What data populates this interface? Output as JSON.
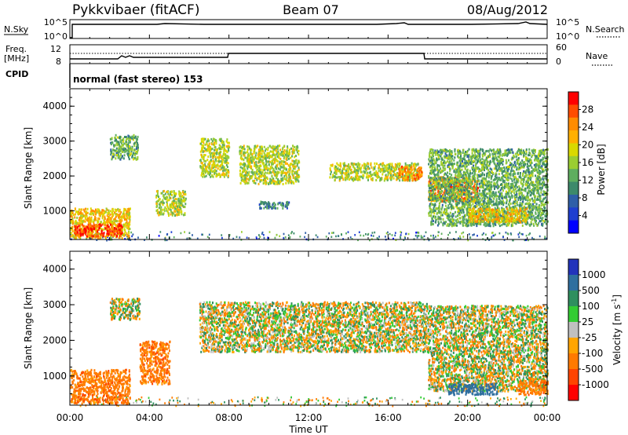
{
  "header": {
    "radar": "Pykkvibaer (fitACF)",
    "beam": "Beam 07",
    "date": "08/Aug/2012"
  },
  "panels": {
    "nsky": {
      "label": "N.Sky",
      "ticks": [
        "10^5",
        "10^0"
      ],
      "right_label": "N.Search",
      "right_ticks": [
        "10^5",
        "10^0"
      ]
    },
    "freq": {
      "label_line1": "Freq.",
      "label_line2": "[MHz]",
      "ticks": [
        "12",
        "8"
      ],
      "right_label": "Nave",
      "right_ticks": [
        "60",
        "0"
      ]
    },
    "cpid": {
      "label": "CPID",
      "program": "normal (fast stereo) 153"
    }
  },
  "colorbars": {
    "power": {
      "label": "Power [dB]",
      "ticks": [
        "28",
        "24",
        "20",
        "16",
        "12",
        "8",
        "4"
      ],
      "colors": [
        "#ff0000",
        "#ff4d00",
        "#ff8c00",
        "#ffb000",
        "#d9d900",
        "#9acd32",
        "#5fae5f",
        "#3d8a6b",
        "#2f5fa8",
        "#1f3fd0",
        "#0000ff"
      ]
    },
    "velocity": {
      "label": "Velocity [m s",
      "label_sup": "-1",
      "label_close": "]",
      "ticks": [
        "1000",
        "500",
        "100",
        "25",
        "-25",
        "-100",
        "-500",
        "-1000"
      ],
      "colors": [
        "#2233bb",
        "#2f6f9f",
        "#2f8f5f",
        "#33cc33",
        "#c0c0c0",
        "#ffa500",
        "#ff7a00",
        "#ff4400",
        "#ff0000"
      ]
    }
  },
  "chart_data": [
    {
      "type": "heatmap",
      "name": "Power",
      "ylabel": "Slant Range [km]",
      "yticks": [
        "4000",
        "3000",
        "2000",
        "1000"
      ],
      "ylim": [
        180,
        4500
      ],
      "xlim": [
        0,
        24
      ],
      "xticks": [
        "00:00",
        "04:00",
        "08:00",
        "12:00",
        "16:00",
        "20:00",
        "00:00"
      ],
      "bands": [
        {
          "t0": 0.0,
          "t1": 3.0,
          "r0": 250,
          "r1": 1100,
          "level": 20
        },
        {
          "t0": 0.2,
          "t1": 2.6,
          "r0": 300,
          "r1": 650,
          "level": 28
        },
        {
          "t0": 2.0,
          "t1": 3.4,
          "r0": 2500,
          "r1": 3200,
          "level": 12
        },
        {
          "t0": 4.3,
          "t1": 5.8,
          "r0": 900,
          "r1": 1600,
          "level": 16
        },
        {
          "t0": 6.5,
          "t1": 8.0,
          "r0": 2000,
          "r1": 3100,
          "level": 16
        },
        {
          "t0": 8.5,
          "t1": 11.5,
          "r0": 1800,
          "r1": 2900,
          "level": 16
        },
        {
          "t0": 9.5,
          "t1": 11.0,
          "r0": 1100,
          "r1": 1300,
          "level": 8
        },
        {
          "t0": 13.0,
          "t1": 17.5,
          "r0": 1900,
          "r1": 2400,
          "level": 16
        },
        {
          "t0": 16.5,
          "t1": 17.7,
          "r0": 1900,
          "r1": 2300,
          "level": 24
        },
        {
          "t0": 18.0,
          "t1": 20.5,
          "r0": 1300,
          "r1": 2000,
          "level": 24
        },
        {
          "t0": 18.0,
          "t1": 24.0,
          "r0": 600,
          "r1": 2800,
          "level": 12
        },
        {
          "t0": 20.0,
          "t1": 23.0,
          "r0": 700,
          "r1": 1100,
          "level": 20
        }
      ]
    },
    {
      "type": "heatmap",
      "name": "Velocity",
      "ylabel": "Slant Range [km]",
      "yticks": [
        "4000",
        "3000",
        "2000",
        "1000"
      ],
      "ylim": [
        180,
        4500
      ],
      "xlim": [
        0,
        24
      ],
      "xticks": [
        "00:00",
        "04:00",
        "08:00",
        "12:00",
        "16:00",
        "20:00",
        "00:00"
      ],
      "xlabel": "Time UT",
      "bands": [
        {
          "t0": 0.0,
          "t1": 3.0,
          "r0": 250,
          "r1": 1200,
          "level": -250
        },
        {
          "t0": 2.0,
          "t1": 3.5,
          "r0": 2600,
          "r1": 3200,
          "level": 0
        },
        {
          "t0": 3.5,
          "t1": 5.0,
          "r0": 800,
          "r1": 2000,
          "level": -250
        },
        {
          "t0": 6.5,
          "t1": 18.0,
          "r0": 1700,
          "r1": 3100,
          "level": 0
        },
        {
          "t0": 18.0,
          "t1": 24.0,
          "r0": 600,
          "r1": 3000,
          "level": 0
        },
        {
          "t0": 19.0,
          "t1": 21.5,
          "r0": 500,
          "r1": 800,
          "level": 500
        },
        {
          "t0": 22.5,
          "t1": 24.0,
          "r0": 500,
          "r1": 900,
          "level": -250
        }
      ]
    }
  ]
}
